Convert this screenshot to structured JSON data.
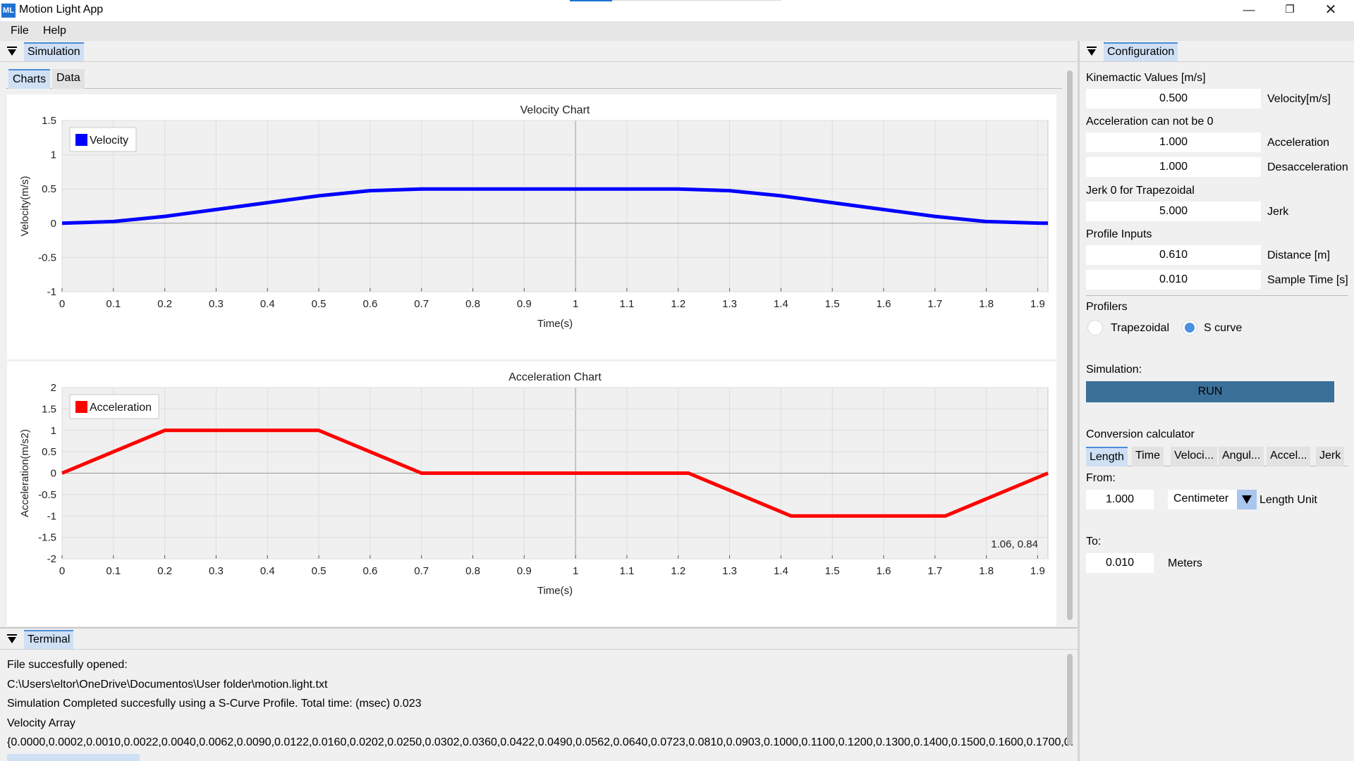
{
  "app": {
    "title": "Motion Light App",
    "icon_text": "ML"
  },
  "window_controls": {
    "minimize": "—",
    "maximize": "❐",
    "close": "✕"
  },
  "menu": {
    "file": "File",
    "help": "Help"
  },
  "simulation": {
    "dock_title": "Simulation",
    "tabs": {
      "charts": "Charts",
      "data": "Data"
    }
  },
  "terminal": {
    "dock_title": "Terminal",
    "lines": [
      "File succesfully opened:",
      "C:\\Users\\eltor\\OneDrive\\Documentos\\User folder\\motion.light.txt",
      "Simulation Completed succesfully using a S-Curve Profile.    Total time: (msec) 0.023",
      "Velocity Array",
      "{0.0000,0.0002,0.0010,0.0022,0.0040,0.0062,0.0090,0.0122,0.0160,0.0202,0.0250,0.0302,0.0360,0.0422,0.0490,0.0562,0.0640,0.0723,0.0810,0.0903,0.1000,0.1100,0.1200,0.1300,0.1400,0.1500,0.1600,0.1700,0."
    ]
  },
  "configuration": {
    "dock_title": "Configuration",
    "kinematic_title": "Kinemactic Values [m/s]",
    "velocity_value": "0.500",
    "velocity_unit": "Velocity[m/s]",
    "accel_note": "Acceleration can not be 0",
    "acceleration_value": "1.000",
    "acceleration_unit": "Acceleration",
    "deceleration_value": "1.000",
    "deceleration_unit": "Desacceleration",
    "jerk_note": "Jerk 0 for Trapezoidal",
    "jerk_value": "5.000",
    "jerk_unit": "Jerk",
    "profile_title": "Profile Inputs",
    "distance_value": "0.610",
    "distance_unit": "Distance [m]",
    "sample_value": "0.010",
    "sample_unit": "Sample Time [s]",
    "profilers_title": "Profilers",
    "trapezoidal_label": "Trapezoidal",
    "scurve_label": "S curve",
    "selected_profiler": "S curve",
    "simulation_title": "Simulation:",
    "run_label": "RUN",
    "conversion_title": "Conversion calculator",
    "conversion_tabs": [
      "Length",
      "Time",
      "Veloci...",
      "Angul...",
      "Accel...",
      "Jerk"
    ],
    "active_conversion_tab": "Length",
    "from_label": "From:",
    "from_value": "1.000",
    "from_unit": "Centimeter",
    "unit_type_label": "Length Unit",
    "to_label": "To:",
    "to_value": "0.010",
    "to_unit": "Meters"
  },
  "colors": {
    "velocity_series": "#0000ff",
    "acceleration_series": "#ff0000",
    "tab_active": "#cfe0f5",
    "run_button": "#3a6f98"
  },
  "chart_data": [
    {
      "type": "line",
      "title": "Velocity Chart",
      "xlabel": "Time(s)",
      "ylabel": "Velocity(m/s)",
      "xlim": [
        0,
        1.92
      ],
      "ylim": [
        -1,
        1.5
      ],
      "xticks": [
        "0",
        "0.1",
        "0.2",
        "0.3",
        "0.4",
        "0.5",
        "0.6",
        "0.7",
        "0.8",
        "0.9",
        "1",
        "1.1",
        "1.2",
        "1.3",
        "1.4",
        "1.5",
        "1.6",
        "1.7",
        "1.8",
        "1.9"
      ],
      "yticks": [
        "1.5",
        "1",
        "0.5",
        "0",
        "-0.5",
        "-1"
      ],
      "legend": "top-left",
      "grid": true,
      "series": [
        {
          "name": "Velocity",
          "x": [
            0,
            0.1,
            0.2,
            0.3,
            0.4,
            0.5,
            0.6,
            0.7,
            0.8,
            0.9,
            1.0,
            1.1,
            1.2,
            1.3,
            1.4,
            1.5,
            1.6,
            1.7,
            1.8,
            1.9,
            1.92
          ],
          "y": [
            0,
            0.025,
            0.1,
            0.2,
            0.3,
            0.4,
            0.475,
            0.5,
            0.5,
            0.5,
            0.5,
            0.5,
            0.5,
            0.475,
            0.4,
            0.3,
            0.2,
            0.1,
            0.025,
            0.002,
            0
          ]
        }
      ]
    },
    {
      "type": "line",
      "title": "Acceleration Chart",
      "xlabel": "Time(s)",
      "ylabel": "Acceleration(m/s2)",
      "xlim": [
        0,
        1.92
      ],
      "ylim": [
        -2,
        2
      ],
      "xticks": [
        "0",
        "0.1",
        "0.2",
        "0.3",
        "0.4",
        "0.5",
        "0.6",
        "0.7",
        "0.8",
        "0.9",
        "1",
        "1.1",
        "1.2",
        "1.3",
        "1.4",
        "1.5",
        "1.6",
        "1.7",
        "1.8",
        "1.9"
      ],
      "yticks": [
        "2",
        "1.5",
        "1",
        "0.5",
        "0",
        "-0.5",
        "-1",
        "-1.5",
        "-2"
      ],
      "legend": "top-left",
      "grid": true,
      "cursor_readout": "1.06, 0.84",
      "series": [
        {
          "name": "Acceleration",
          "x": [
            0,
            0.2,
            0.5,
            0.7,
            1.22,
            1.42,
            1.72,
            1.92
          ],
          "y": [
            0,
            1,
            1,
            0,
            0,
            -1,
            -1,
            0
          ]
        }
      ]
    }
  ]
}
